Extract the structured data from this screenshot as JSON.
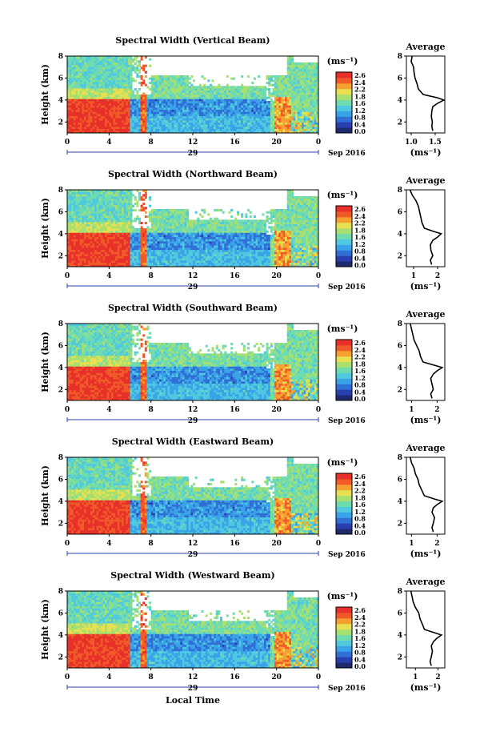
{
  "figure": {
    "xlabel": "Local Time",
    "colorbar_unit": "(ms⁻¹)",
    "colorbar_ticks": [
      "2.6",
      "2.4",
      "2.2",
      "1.8",
      "1.6",
      "1.2",
      "0.8",
      "0.4",
      "0.0"
    ],
    "profile_title": "Average",
    "profile_xlabel": "(ms⁻¹)",
    "date_day": "29",
    "date_label": "Sep 2016",
    "colors": {
      "scale": [
        "#1e2a6e",
        "#2a3fae",
        "#2f6fd6",
        "#3aa3e8",
        "#4fc9e0",
        "#6fdcb0",
        "#a8e070",
        "#e8e050",
        "#f5a030",
        "#f05a28",
        "#e8302a"
      ]
    }
  },
  "chart_data": [
    {
      "type": "heatmap",
      "title": "Spectral Width (Vertical Beam)",
      "xlabel": "",
      "ylabel": "Height (km)",
      "x_range_hours": [
        0,
        24
      ],
      "x_ticks": [
        "0",
        "4",
        "8",
        "12",
        "16",
        "20",
        "0"
      ],
      "ylim": [
        1,
        8
      ],
      "y_ticks": [
        "2",
        "4",
        "6",
        "8"
      ],
      "colorbar": {
        "min": 0.0,
        "max": 2.8,
        "unit": "ms-1"
      },
      "profile": {
        "title": "Average",
        "xlim": [
          0.9,
          1.7
        ],
        "x_ticks": [
          "1.0",
          "1.5"
        ],
        "height": [
          1.2,
          1.6,
          2.0,
          2.5,
          3.0,
          3.4,
          3.7,
          4.0,
          4.2,
          4.5,
          5.0,
          5.5,
          6.0,
          6.5,
          7.0,
          7.5,
          8.0
        ],
        "value": [
          1.45,
          1.43,
          1.44,
          1.42,
          1.43,
          1.45,
          1.55,
          1.68,
          1.55,
          1.25,
          1.15,
          1.12,
          1.08,
          1.06,
          1.05,
          1.0,
          1.02
        ]
      }
    },
    {
      "type": "heatmap",
      "title": "Spectral Width (Northward Beam)",
      "xlabel": "",
      "ylabel": "Height (km)",
      "x_range_hours": [
        0,
        24
      ],
      "x_ticks": [
        "0",
        "4",
        "8",
        "12",
        "16",
        "20",
        "0"
      ],
      "ylim": [
        1,
        8
      ],
      "y_ticks": [
        "2",
        "4",
        "6",
        "8"
      ],
      "colorbar": {
        "min": 0.0,
        "max": 2.8,
        "unit": "ms-1"
      },
      "profile": {
        "title": "Average",
        "xlim": [
          0.7,
          2.3
        ],
        "x_ticks": [
          "1",
          "2"
        ],
        "height": [
          1.2,
          1.6,
          2.0,
          2.5,
          3.0,
          3.4,
          3.7,
          4.0,
          4.2,
          4.5,
          5.0,
          5.5,
          6.0,
          6.5,
          7.0,
          7.5,
          8.0
        ],
        "value": [
          1.75,
          1.7,
          1.8,
          1.72,
          1.7,
          1.8,
          2.0,
          2.15,
          1.85,
          1.45,
          1.35,
          1.3,
          1.25,
          1.2,
          1.1,
          0.95,
          0.85
        ]
      }
    },
    {
      "type": "heatmap",
      "title": "Spectral Width (Southward Beam)",
      "xlabel": "",
      "ylabel": "Height (km)",
      "x_range_hours": [
        0,
        24
      ],
      "x_ticks": [
        "0",
        "4",
        "8",
        "12",
        "16",
        "20",
        "0"
      ],
      "ylim": [
        1,
        8
      ],
      "y_ticks": [
        "2",
        "4",
        "6",
        "8"
      ],
      "colorbar": {
        "min": 0.0,
        "max": 2.8,
        "unit": "ms-1"
      },
      "profile": {
        "title": "Average",
        "xlim": [
          0.8,
          2.3
        ],
        "x_ticks": [
          "1",
          "2"
        ],
        "height": [
          1.2,
          1.6,
          2.0,
          2.5,
          3.0,
          3.4,
          3.7,
          4.0,
          4.2,
          4.5,
          5.0,
          5.5,
          6.0,
          6.5,
          7.0,
          7.5,
          8.0
        ],
        "value": [
          1.8,
          1.75,
          1.85,
          1.8,
          1.75,
          1.85,
          2.0,
          2.2,
          1.9,
          1.45,
          1.35,
          1.3,
          1.2,
          1.1,
          1.05,
          1.0,
          0.95
        ]
      }
    },
    {
      "type": "heatmap",
      "title": "Spectral Width (Eastward Beam)",
      "xlabel": "",
      "ylabel": "Height (km)",
      "x_range_hours": [
        0,
        24
      ],
      "x_ticks": [
        "0",
        "4",
        "8",
        "12",
        "16",
        "20",
        "0"
      ],
      "ylim": [
        1,
        8
      ],
      "y_ticks": [
        "2",
        "4",
        "6",
        "8"
      ],
      "colorbar": {
        "min": 0.0,
        "max": 2.8,
        "unit": "ms-1"
      },
      "profile": {
        "title": "Average",
        "xlim": [
          0.8,
          2.3
        ],
        "x_ticks": [
          "1",
          "2"
        ],
        "height": [
          1.2,
          1.6,
          2.0,
          2.5,
          3.0,
          3.4,
          3.7,
          4.0,
          4.2,
          4.5,
          5.0,
          5.5,
          6.0,
          6.5,
          7.0,
          7.5,
          8.0
        ],
        "value": [
          1.85,
          1.8,
          1.85,
          1.9,
          1.8,
          1.85,
          2.0,
          2.2,
          1.9,
          1.5,
          1.4,
          1.3,
          1.25,
          1.15,
          1.1,
          1.0,
          0.95
        ]
      }
    },
    {
      "type": "heatmap",
      "title": "Spectral Width (Westward Beam)",
      "xlabel": "Local Time",
      "ylabel": "Height (km)",
      "x_range_hours": [
        0,
        24
      ],
      "x_ticks": [
        "0",
        "4",
        "8",
        "12",
        "16",
        "20",
        "0"
      ],
      "ylim": [
        1,
        8
      ],
      "y_ticks": [
        "2",
        "4",
        "6",
        "8"
      ],
      "colorbar": {
        "min": 0.0,
        "max": 2.8,
        "unit": "ms-1"
      },
      "profile": {
        "title": "Average",
        "xlim": [
          0.6,
          2.3
        ],
        "x_ticks": [
          "1",
          "2"
        ],
        "height": [
          1.2,
          1.6,
          2.0,
          2.5,
          3.0,
          3.4,
          3.7,
          4.0,
          4.2,
          4.5,
          5.0,
          5.5,
          6.0,
          6.5,
          7.0,
          7.5,
          8.0
        ],
        "value": [
          1.7,
          1.65,
          1.7,
          1.75,
          1.7,
          1.8,
          1.95,
          2.15,
          1.85,
          1.4,
          1.3,
          1.2,
          1.15,
          1.0,
          0.9,
          0.85,
          0.8
        ]
      }
    }
  ]
}
